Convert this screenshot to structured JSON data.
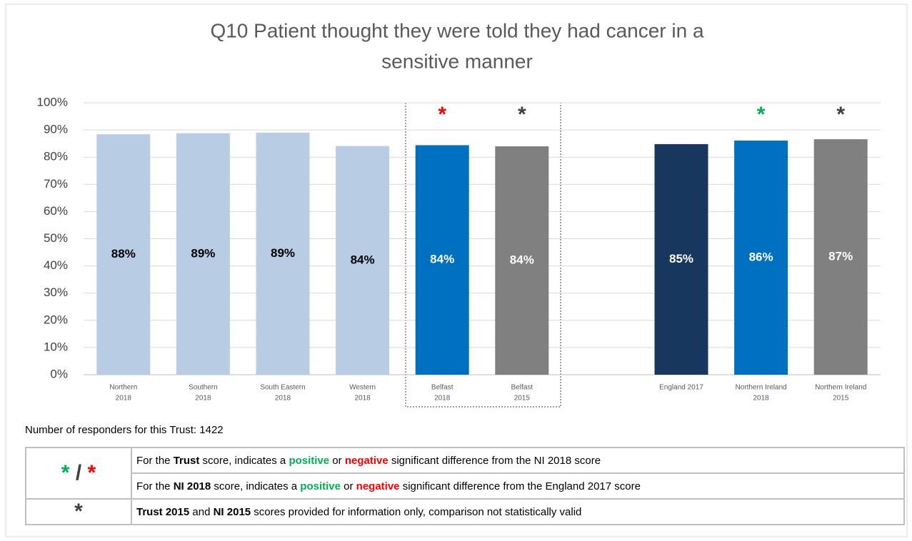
{
  "chart_data": {
    "type": "bar",
    "title": [
      "Q10 Patient thought they were told they had cancer in a",
      "sensitive manner"
    ],
    "categories": [
      [
        "Northern",
        "2018"
      ],
      [
        "Southern",
        "2018"
      ],
      [
        "South Eastern",
        "2018"
      ],
      [
        "Western",
        "2018"
      ],
      [
        "Belfast",
        "2018"
      ],
      [
        "Belfast",
        "2015"
      ],
      null,
      [
        "England 2017"
      ],
      [
        "Northern Ireland",
        "2018"
      ],
      [
        "Northern Ireland",
        "2015"
      ]
    ],
    "values": [
      88.4,
      88.8,
      89.0,
      84.1,
      84.4,
      84.0,
      null,
      84.8,
      86.1,
      86.6
    ],
    "value_labels": [
      "88%",
      "89%",
      "89%",
      "84%",
      "84%",
      "84%",
      null,
      "85%",
      "86%",
      "87%"
    ],
    "colors": [
      "#b8cce4",
      "#b8cce4",
      "#b8cce4",
      "#b8cce4",
      "#0070c0",
      "#808080",
      null,
      "#17375e",
      "#0070c0",
      "#808080"
    ],
    "label_colors": [
      "#000000",
      "#000000",
      "#000000",
      "#000000",
      "#ffffff",
      "#ffffff",
      null,
      "#ffffff",
      "#ffffff",
      "#ffffff"
    ],
    "markers": [
      {
        "index": 4,
        "text": "*",
        "color": "#ff0000"
      },
      {
        "index": 5,
        "text": "*",
        "color": "#404040"
      },
      {
        "index": 8,
        "text": "*",
        "color": "#00b050"
      },
      {
        "index": 9,
        "text": "*",
        "color": "#404040"
      }
    ],
    "ylim": [
      0,
      100
    ],
    "yticks": [
      {
        "value": 0,
        "label": "0%"
      },
      {
        "value": 10,
        "label": "10%"
      },
      {
        "value": 20,
        "label": "20%"
      },
      {
        "value": 30,
        "label": "30%"
      },
      {
        "value": 40,
        "label": "40%"
      },
      {
        "value": 50,
        "label": "50%"
      },
      {
        "value": 60,
        "label": "60%"
      },
      {
        "value": 70,
        "label": "70%"
      },
      {
        "value": 80,
        "label": "80%"
      },
      {
        "value": 90,
        "label": "90%"
      },
      {
        "value": 100,
        "label": "100%"
      }
    ],
    "grid": true
  },
  "responders": "Number of responders for this Trust: 1422",
  "legend_table": {
    "rows": [
      {
        "symbol": [
          {
            "text": "*",
            "style": "positive"
          },
          {
            "text": " / "
          },
          {
            "text": "*",
            "style": "negative"
          }
        ],
        "lines": [
          [
            {
              "text": "For the "
            },
            {
              "text": "Trust",
              "style": "bold"
            },
            {
              "text": " score, indicates a "
            },
            {
              "text": "positive",
              "style": "positive"
            },
            {
              "text": " or "
            },
            {
              "text": "negative",
              "style": "negative"
            },
            {
              "text": " significant difference from the NI 2018 score"
            }
          ],
          [
            {
              "text": "For the "
            },
            {
              "text": "NI 2018",
              "style": "bold"
            },
            {
              "text": " score, indicates a "
            },
            {
              "text": "positive",
              "style": "positive"
            },
            {
              "text": " or "
            },
            {
              "text": "negative",
              "style": "negative"
            },
            {
              "text": " significant difference from the England 2017 score"
            }
          ]
        ]
      },
      {
        "symbol": [
          {
            "text": "*"
          }
        ],
        "lines": [
          [
            {
              "text": "Trust 2015",
              "style": "bold"
            },
            {
              "text": " and  "
            },
            {
              "text": "NI 2015",
              "style": "bold"
            },
            {
              "text": " scores provided for information only, comparison not statistically valid"
            }
          ]
        ]
      }
    ]
  }
}
